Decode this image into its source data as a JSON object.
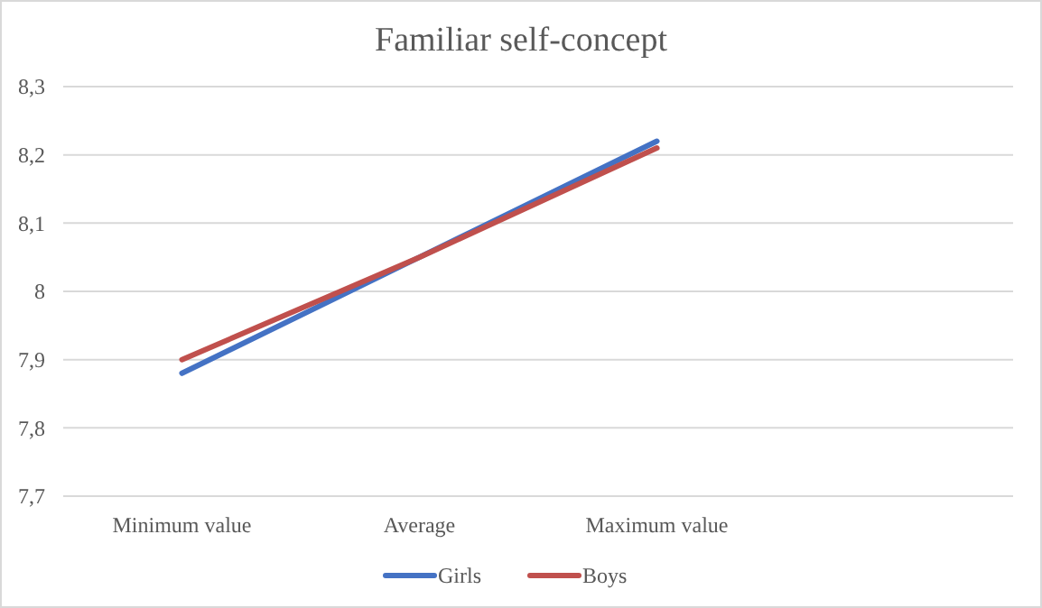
{
  "chart_data": {
    "type": "line",
    "title": "Familiar self-concept",
    "categories": [
      "Minimum value",
      "Average",
      "Maximum value",
      null
    ],
    "series": [
      {
        "name": "Girls",
        "color": "#4472c4",
        "values": [
          7.88,
          8.05,
          8.22,
          null
        ]
      },
      {
        "name": "Boys",
        "color": "#c0504d",
        "values": [
          7.9,
          8.05,
          8.21,
          null
        ]
      }
    ],
    "ylim": [
      7.7,
      8.3
    ],
    "yticks": [
      {
        "value": 7.7,
        "label": "7,7"
      },
      {
        "value": 7.8,
        "label": "7,8"
      },
      {
        "value": 7.9,
        "label": "7,9"
      },
      {
        "value": 8,
        "label": "8"
      },
      {
        "value": 8.1,
        "label": "8,1"
      },
      {
        "value": 8.2,
        "label": "8,2"
      },
      {
        "value": 8.3,
        "label": "8,3"
      }
    ],
    "grid": "y",
    "legend": "bottom",
    "marker": "none",
    "line_style": "solid"
  }
}
